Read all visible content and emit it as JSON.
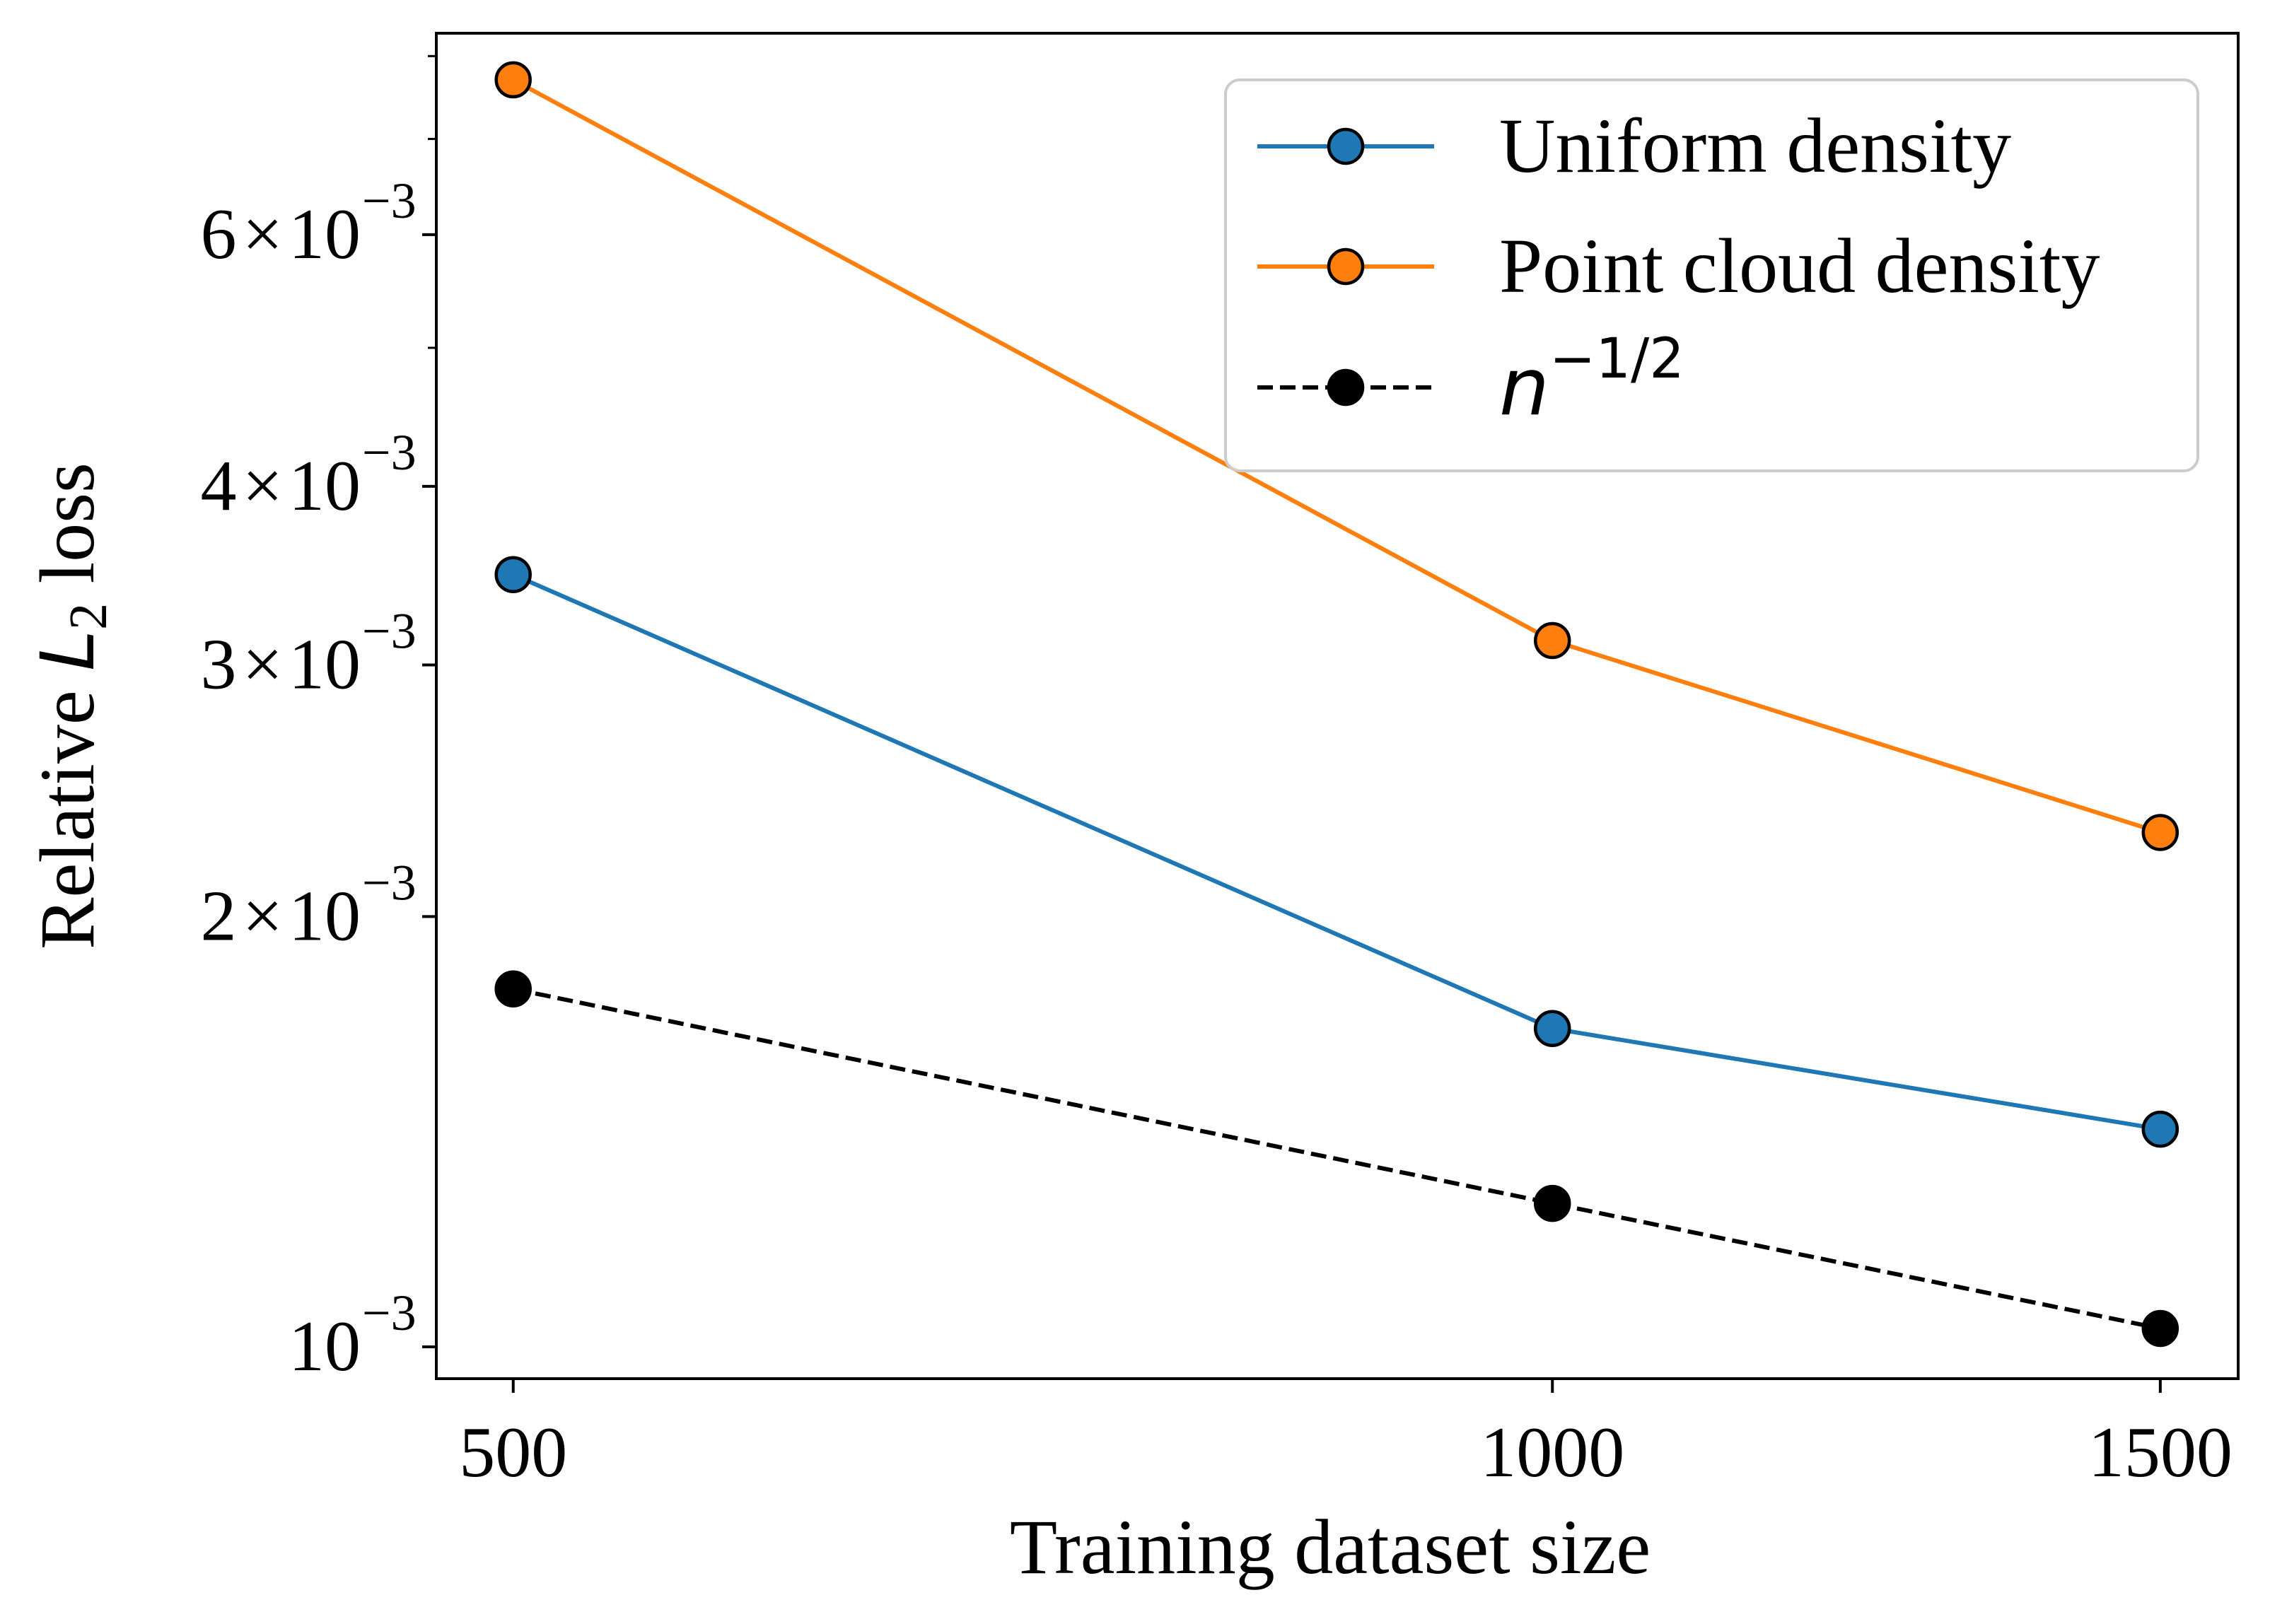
{
  "chart_data": {
    "type": "line",
    "xlabel": "Training dataset size",
    "ylabel": {
      "prefix": "Relative ",
      "var": "L",
      "sub": "2",
      "suffix": " loss"
    },
    "x_scale": "log",
    "y_scale": "log",
    "xlim": [
      475,
      1580
    ],
    "ylim": [
      0.00095,
      0.0083
    ],
    "x_ticks": [
      {
        "value": 500,
        "label": "500"
      },
      {
        "value": 1000,
        "label": "1000"
      },
      {
        "value": 1500,
        "label": "1500"
      }
    ],
    "y_major_ticks": [
      {
        "value": 0.001,
        "mantissa": "",
        "label": "10",
        "exponent": "−3"
      },
      {
        "value": 0.002,
        "mantissa": "2",
        "label": "10",
        "exponent": "−3"
      },
      {
        "value": 0.003,
        "mantissa": "3",
        "label": "10",
        "exponent": "−3"
      },
      {
        "value": 0.004,
        "mantissa": "4",
        "label": "10",
        "exponent": "−3"
      },
      {
        "value": 0.006,
        "mantissa": "6",
        "label": "10",
        "exponent": "−3"
      }
    ],
    "y_minor_ticks": [
      0.005,
      0.007,
      0.008
    ],
    "times_symbol": "×",
    "grid": false,
    "legend_position": "top-right",
    "series": [
      {
        "name": "Uniform density",
        "color": "#1f77b4",
        "line_style": "solid",
        "marker": "circle",
        "x": [
          500,
          1000,
          1500
        ],
        "values": [
          0.00347,
          0.00167,
          0.00142
        ]
      },
      {
        "name": "Point cloud density",
        "color": "#ff7f0e",
        "line_style": "solid",
        "marker": "circle",
        "x": [
          500,
          1000,
          1500
        ],
        "values": [
          0.0077,
          0.00312,
          0.00229
        ]
      },
      {
        "name": "n^{-1/2}",
        "name_base": "n",
        "name_exponent": "−1/2",
        "color": "#000000",
        "line_style": "dashed",
        "marker": "circle",
        "x": [
          500,
          1000,
          1500
        ],
        "values": [
          0.00178,
          0.00126,
          0.00103
        ]
      }
    ]
  }
}
